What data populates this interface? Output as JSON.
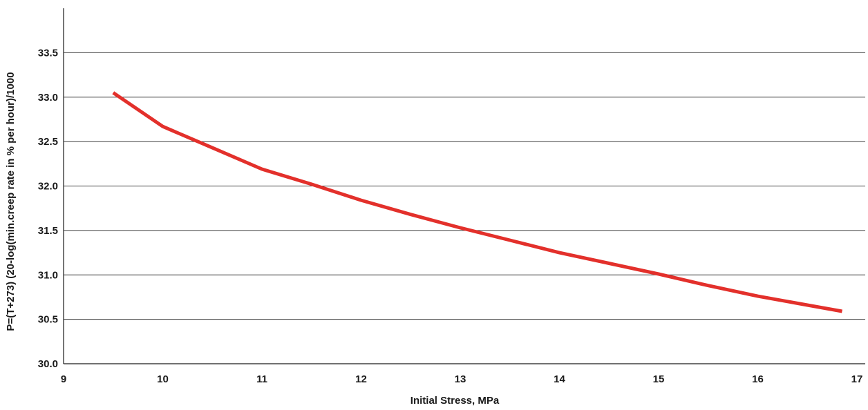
{
  "chart_data": {
    "type": "line",
    "title": "",
    "xlabel": "Initial Stress, MPa",
    "ylabel": "P=(T+273) (20-log(min.creep rate in % per hour)/1000",
    "xlim": [
      9,
      17
    ],
    "ylim": [
      30.0,
      34.0
    ],
    "x_ticks": [
      9,
      10,
      11,
      12,
      13,
      14,
      15,
      16,
      17
    ],
    "y_ticks": [
      "30.0",
      "30.5",
      "31.0",
      "31.5",
      "32.0",
      "32.5",
      "33.0",
      "33.5"
    ],
    "grid": "horizontal",
    "line_color": "#e3302b",
    "series": [
      {
        "x": [
          9.5,
          10.0,
          10.5,
          11.0,
          11.5,
          12.0,
          12.5,
          13.0,
          13.5,
          14.0,
          14.5,
          15.0,
          15.5,
          16.0,
          16.5,
          16.85
        ],
        "y": [
          33.05,
          32.67,
          32.43,
          32.19,
          32.02,
          31.84,
          31.68,
          31.53,
          31.39,
          31.25,
          31.13,
          31.01,
          30.88,
          30.76,
          30.66,
          30.59
        ]
      }
    ]
  }
}
